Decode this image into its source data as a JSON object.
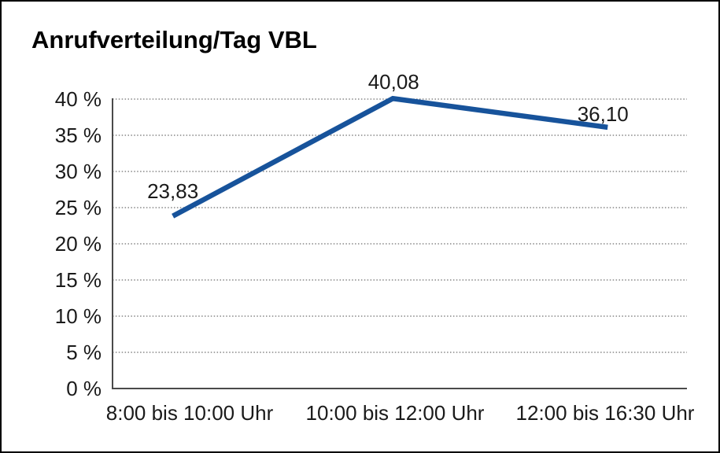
{
  "chart_data": {
    "type": "line",
    "title": "Anrufverteilung/Tag VBL",
    "categories": [
      "8:00 bis 10:00 Uhr",
      "10:00 bis 12:00 Uhr",
      "12:00 bis 16:30 Uhr"
    ],
    "values": [
      23.83,
      40.08,
      36.1
    ],
    "value_labels": [
      "23,83",
      "40,08",
      "36,10"
    ],
    "xlabel": "",
    "ylabel": "",
    "ylim": [
      0,
      40
    ],
    "y_ticks": [
      0,
      5,
      10,
      15,
      20,
      25,
      30,
      35,
      40
    ],
    "y_tick_labels": [
      "0 %",
      "5 %",
      "10 %",
      "15 %",
      "20 %",
      "25 %",
      "30 %",
      "35 %",
      "40 %"
    ],
    "grid": "horizontal-dotted",
    "legend": "none",
    "colors": {
      "line": "#17539b",
      "axis": "#4a4a4a",
      "gridline": "#6e6e6e",
      "text": "#1a1a1a",
      "frame_border": "#000000",
      "background": "#ffffff"
    }
  }
}
